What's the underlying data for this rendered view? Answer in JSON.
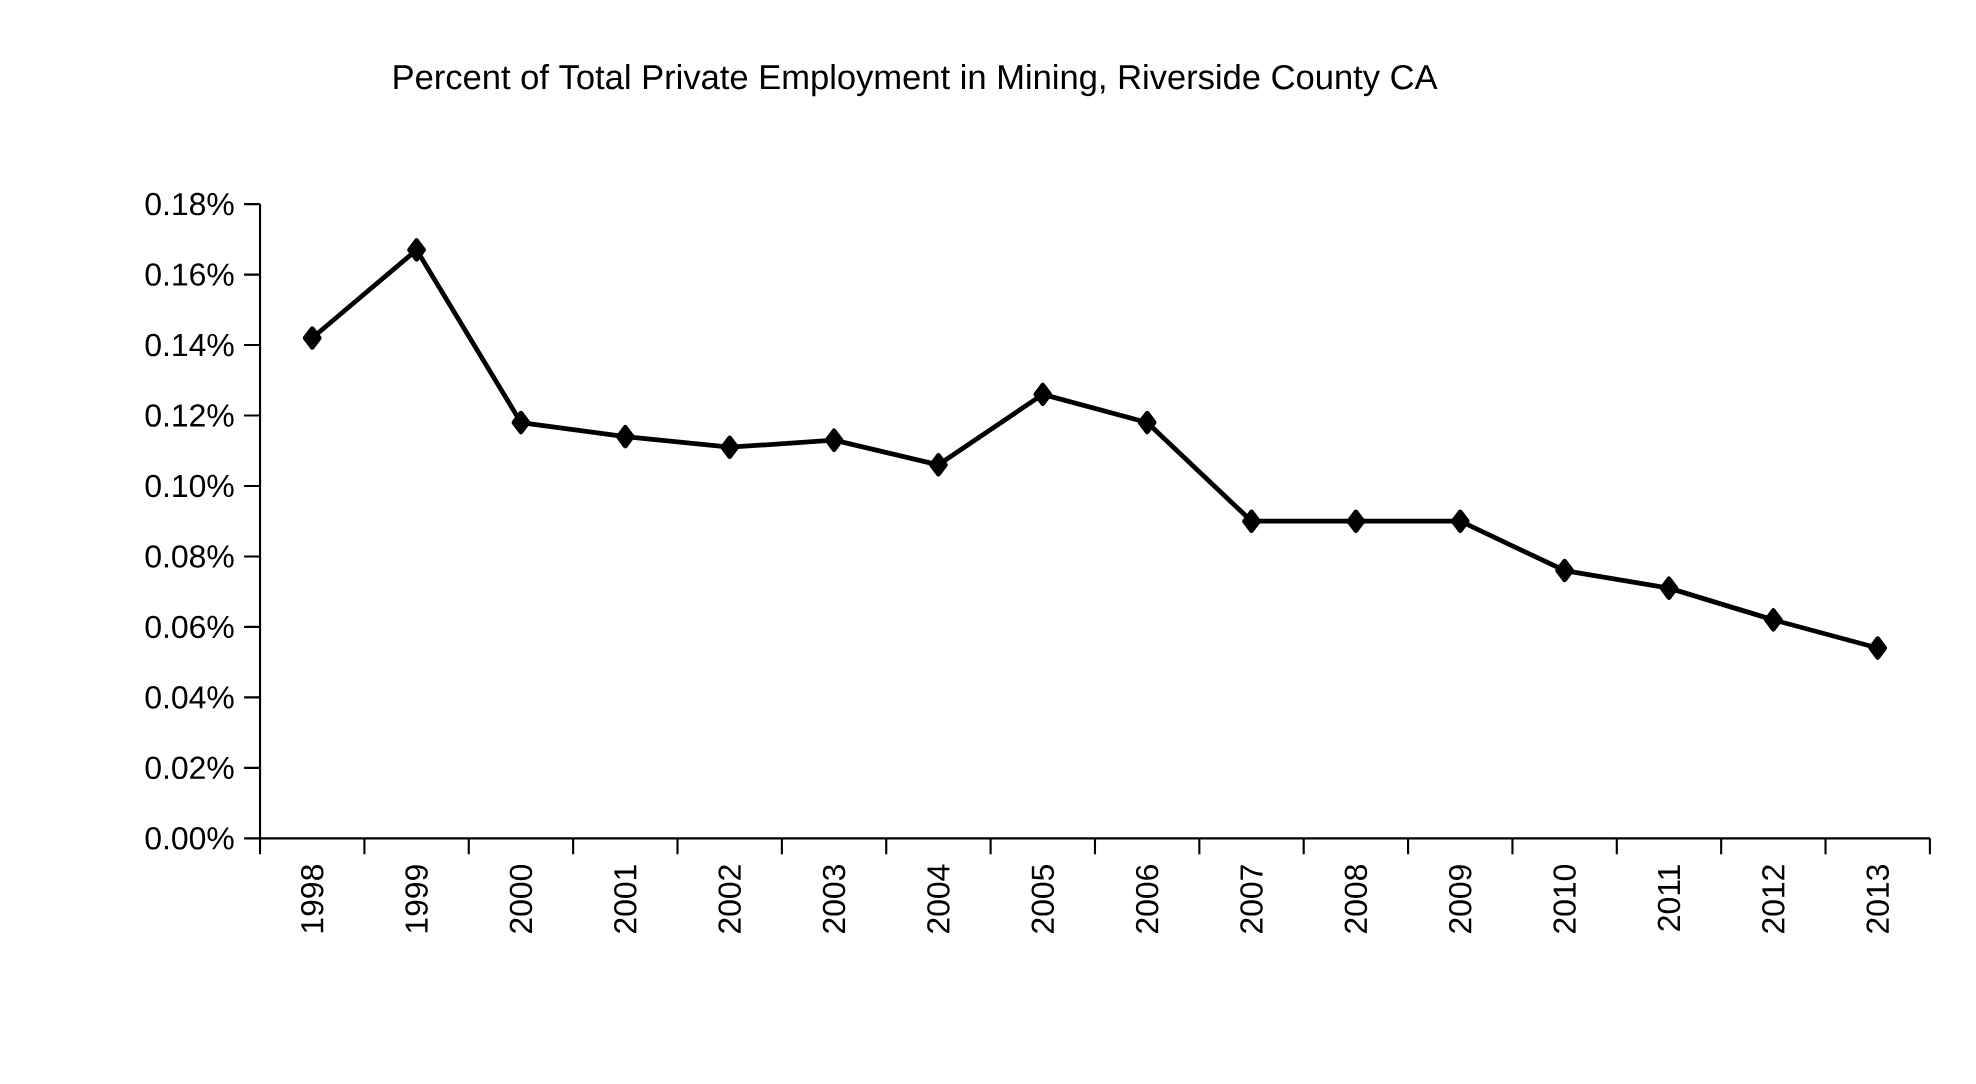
{
  "chart_data": {
    "type": "line",
    "title": "Percent of Total Private Employment in Mining, Riverside County CA",
    "categories": [
      "1998",
      "1999",
      "2000",
      "2001",
      "2002",
      "2003",
      "2004",
      "2005",
      "2006",
      "2007",
      "2008",
      "2009",
      "2010",
      "2011",
      "2012",
      "2013"
    ],
    "values": [
      0.142,
      0.167,
      0.118,
      0.114,
      0.111,
      0.113,
      0.106,
      0.126,
      0.118,
      0.09,
      0.09,
      0.09,
      0.076,
      0.071,
      0.062,
      0.054
    ],
    "color": "#000000",
    "marker": "diamond",
    "line_style": "solid",
    "grid": false,
    "ylim": [
      0,
      0.18
    ],
    "yticks": [
      {
        "value": 0,
        "label": "0.00%"
      },
      {
        "value": 0.02,
        "label": "0.02%"
      },
      {
        "value": 0.04,
        "label": "0.04%"
      },
      {
        "value": 0.06,
        "label": "0.06%"
      },
      {
        "value": 0.08,
        "label": "0.08%"
      },
      {
        "value": 0.1,
        "label": "0.10%"
      },
      {
        "value": 0.12,
        "label": "0.12%"
      },
      {
        "value": 0.14,
        "label": "0.14%"
      },
      {
        "value": 0.16,
        "label": "0.16%"
      },
      {
        "value": 0.18,
        "label": "0.18%"
      }
    ]
  }
}
